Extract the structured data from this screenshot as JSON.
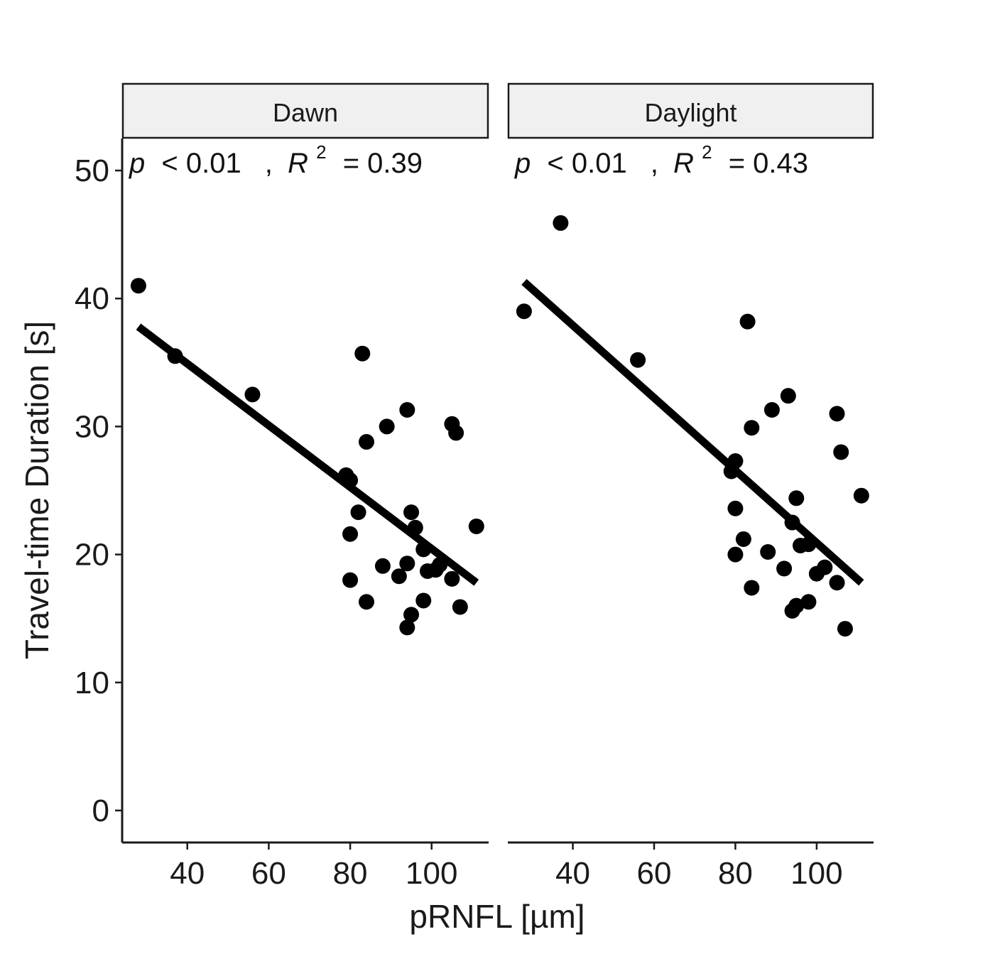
{
  "chart_data": {
    "type": "scatter",
    "xlabel": "pRNFL [µm]",
    "ylabel": "Travel-time Duration [s]",
    "xlim": [
      24,
      114
    ],
    "ylim": [
      -2.5,
      52.5
    ],
    "x_ticks": [
      40,
      60,
      80,
      100
    ],
    "y_ticks": [
      0,
      10,
      20,
      30,
      40,
      50
    ],
    "x_tick_labels": [
      "40",
      "60",
      "80",
      "100"
    ],
    "y_tick_labels": [
      "0",
      "10",
      "20",
      "30",
      "40",
      "50"
    ],
    "point_color": "#000000",
    "line_color": "#000000",
    "strip_fill": "#f0f0f0",
    "panels": [
      {
        "facet": "Dawn",
        "annotation": {
          "p_symbol": "p",
          "p_rest": "< 0.01",
          "comma": ",",
          "r_symbol": "R",
          "r_sup": "2",
          "r_rest": "= 0.39"
        },
        "regression": {
          "x": [
            28,
            111
          ],
          "y": [
            37.8,
            17.8
          ]
        },
        "points": [
          {
            "x": 28,
            "y": 41.0
          },
          {
            "x": 37,
            "y": 35.5
          },
          {
            "x": 56,
            "y": 32.5
          },
          {
            "x": 79,
            "y": 26.2
          },
          {
            "x": 80,
            "y": 25.8
          },
          {
            "x": 80,
            "y": 21.6
          },
          {
            "x": 80,
            "y": 18.0
          },
          {
            "x": 82,
            "y": 23.3
          },
          {
            "x": 83,
            "y": 35.7
          },
          {
            "x": 84,
            "y": 28.8
          },
          {
            "x": 84,
            "y": 16.3
          },
          {
            "x": 88,
            "y": 19.1
          },
          {
            "x": 89,
            "y": 30.0
          },
          {
            "x": 92,
            "y": 18.3
          },
          {
            "x": 94,
            "y": 31.3
          },
          {
            "x": 94,
            "y": 19.3
          },
          {
            "x": 94,
            "y": 14.3
          },
          {
            "x": 95,
            "y": 23.3
          },
          {
            "x": 95,
            "y": 15.3
          },
          {
            "x": 96,
            "y": 22.1
          },
          {
            "x": 98,
            "y": 20.4
          },
          {
            "x": 98,
            "y": 16.4
          },
          {
            "x": 99,
            "y": 18.7
          },
          {
            "x": 101,
            "y": 18.8
          },
          {
            "x": 102,
            "y": 19.2
          },
          {
            "x": 105,
            "y": 30.2
          },
          {
            "x": 105,
            "y": 18.1
          },
          {
            "x": 106,
            "y": 29.5
          },
          {
            "x": 107,
            "y": 15.9
          },
          {
            "x": 111,
            "y": 22.2
          }
        ]
      },
      {
        "facet": "Daylight",
        "annotation": {
          "p_symbol": "p",
          "p_rest": "< 0.01",
          "comma": ",",
          "r_symbol": "R",
          "r_sup": "2",
          "r_rest": "= 0.43"
        },
        "regression": {
          "x": [
            28,
            111
          ],
          "y": [
            41.3,
            17.8
          ]
        },
        "points": [
          {
            "x": 28,
            "y": 39.0
          },
          {
            "x": 37,
            "y": 45.9
          },
          {
            "x": 56,
            "y": 35.2
          },
          {
            "x": 79,
            "y": 26.5
          },
          {
            "x": 80,
            "y": 27.3
          },
          {
            "x": 80,
            "y": 23.6
          },
          {
            "x": 80,
            "y": 20.0
          },
          {
            "x": 82,
            "y": 21.2
          },
          {
            "x": 83,
            "y": 38.2
          },
          {
            "x": 84,
            "y": 29.9
          },
          {
            "x": 84,
            "y": 17.4
          },
          {
            "x": 88,
            "y": 20.2
          },
          {
            "x": 89,
            "y": 31.3
          },
          {
            "x": 92,
            "y": 18.9
          },
          {
            "x": 93,
            "y": 32.4
          },
          {
            "x": 94,
            "y": 22.5
          },
          {
            "x": 94,
            "y": 15.6
          },
          {
            "x": 95,
            "y": 24.4
          },
          {
            "x": 95,
            "y": 16.0
          },
          {
            "x": 96,
            "y": 20.7
          },
          {
            "x": 98,
            "y": 20.8
          },
          {
            "x": 98,
            "y": 16.3
          },
          {
            "x": 100,
            "y": 18.5
          },
          {
            "x": 102,
            "y": 19.0
          },
          {
            "x": 105,
            "y": 31.0
          },
          {
            "x": 105,
            "y": 17.8
          },
          {
            "x": 106,
            "y": 28.0
          },
          {
            "x": 107,
            "y": 14.2
          },
          {
            "x": 111,
            "y": 24.6
          }
        ]
      }
    ]
  }
}
